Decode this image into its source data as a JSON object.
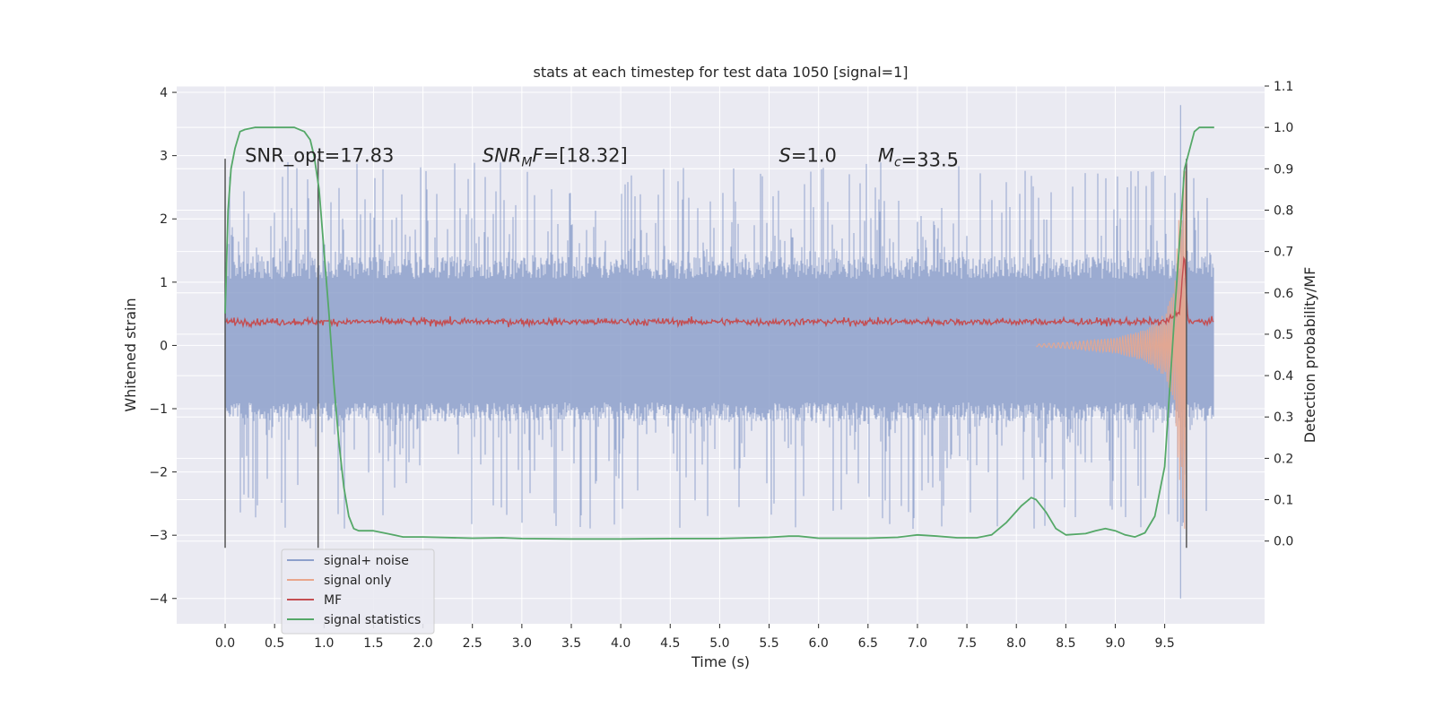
{
  "chart_data": {
    "type": "line",
    "title": "stats at each timestep for test data 1050 [signal=1]",
    "xlabel": "Time (s)",
    "ylabel_left": "Whitened strain",
    "ylabel_right": "Detection probability/MF",
    "xlim": [
      -0.49,
      10.51
    ],
    "ylim_left": [
      -4.4,
      4.1
    ],
    "ylim_right": [
      -0.2,
      1.1
    ],
    "x_ticks": [
      "0.0",
      "0.5",
      "1.0",
      "1.5",
      "2.0",
      "2.5",
      "3.0",
      "3.5",
      "4.0",
      "4.5",
      "5.0",
      "5.5",
      "6.0",
      "6.5",
      "7.0",
      "7.5",
      "8.0",
      "8.5",
      "9.0",
      "9.5"
    ],
    "y_ticks_left": [
      "−4",
      "−3",
      "−2",
      "−1",
      "0",
      "1",
      "2",
      "3",
      "4"
    ],
    "y_ticks_right": [
      "0.0",
      "0.1",
      "0.2",
      "0.3",
      "0.4",
      "0.5",
      "0.6",
      "0.7",
      "0.8",
      "0.9",
      "1.0",
      "1.1"
    ],
    "grid": true,
    "legend_position": "lower-left",
    "annotations": [
      {
        "name": "snr-opt",
        "text": "SNR_opt=17.83",
        "x": 0.2,
        "y": 3.0
      },
      {
        "name": "snr-mf",
        "text": "SNR_MF=[18.32]",
        "x": 2.6,
        "y": 3.0
      },
      {
        "name": "s-value",
        "text": "S=1.0",
        "x": 5.6,
        "y": 3.0
      },
      {
        "name": "mc-value",
        "text": "M_c=33.5",
        "x": 6.6,
        "y": 3.0
      }
    ],
    "vertical_lines": [
      {
        "x": 0.0,
        "ymin": -3.2,
        "ymax": 2.95,
        "color": "#555555"
      },
      {
        "x": 0.94,
        "ymin": -3.2,
        "ymax": 2.95,
        "color": "#555555"
      },
      {
        "x": 9.72,
        "ymin": -3.2,
        "ymax": 2.95,
        "color": "#555555"
      }
    ],
    "series": [
      {
        "name": "signal+ noise",
        "color": "#8da0cb",
        "axis": "left",
        "x_range": [
          0.0,
          10.0
        ],
        "typical_envelope": [
          -1.2,
          1.4
        ],
        "peak_range": [
          -2.9,
          2.9
        ],
        "burst": {
          "x": 9.66,
          "min": -4.0,
          "max": 3.8
        }
      },
      {
        "name": "signal only",
        "color": "#e9a68c",
        "axis": "left",
        "x": [
          8.2,
          8.6,
          9.0,
          9.3,
          9.5,
          9.6,
          9.66,
          9.72
        ],
        "amplitude": [
          0.02,
          0.06,
          0.12,
          0.25,
          0.5,
          0.9,
          2.5,
          3.1
        ]
      },
      {
        "name": "MF",
        "color": "#c44e52",
        "axis": "right",
        "x": [
          0.0,
          9.5,
          9.65,
          9.7,
          9.73,
          9.75,
          10.0
        ],
        "y": [
          0.53,
          0.53,
          0.55,
          0.7,
          0.55,
          0.53,
          0.53
        ]
      },
      {
        "name": "signal statistics",
        "color": "#55a868",
        "axis": "right",
        "x": [
          0.0,
          0.03,
          0.06,
          0.1,
          0.15,
          0.2,
          0.3,
          0.5,
          0.7,
          0.8,
          0.86,
          0.9,
          0.95,
          1.0,
          1.05,
          1.1,
          1.15,
          1.2,
          1.25,
          1.3,
          1.35,
          1.4,
          1.5,
          1.6,
          1.7,
          1.8,
          2.0,
          2.5,
          2.8,
          3.0,
          3.5,
          4.0,
          4.5,
          5.0,
          5.5,
          5.7,
          5.8,
          6.0,
          6.5,
          6.8,
          7.0,
          7.2,
          7.4,
          7.6,
          7.75,
          7.9,
          8.05,
          8.15,
          8.2,
          8.3,
          8.4,
          8.5,
          8.7,
          8.8,
          8.9,
          9.0,
          9.1,
          9.2,
          9.3,
          9.4,
          9.5,
          9.6,
          9.7,
          9.8,
          9.85,
          10.0
        ],
        "y": [
          0.55,
          0.8,
          0.9,
          0.95,
          0.99,
          0.995,
          1.0,
          1.0,
          1.0,
          0.99,
          0.97,
          0.93,
          0.85,
          0.7,
          0.55,
          0.38,
          0.24,
          0.13,
          0.06,
          0.03,
          0.025,
          0.025,
          0.025,
          0.02,
          0.015,
          0.01,
          0.01,
          0.007,
          0.008,
          0.006,
          0.005,
          0.005,
          0.006,
          0.006,
          0.009,
          0.012,
          0.012,
          0.007,
          0.007,
          0.009,
          0.015,
          0.012,
          0.008,
          0.008,
          0.015,
          0.045,
          0.085,
          0.105,
          0.1,
          0.07,
          0.03,
          0.015,
          0.018,
          0.025,
          0.03,
          0.025,
          0.015,
          0.01,
          0.02,
          0.06,
          0.18,
          0.55,
          0.9,
          0.99,
          1.0,
          1.0
        ]
      }
    ]
  }
}
